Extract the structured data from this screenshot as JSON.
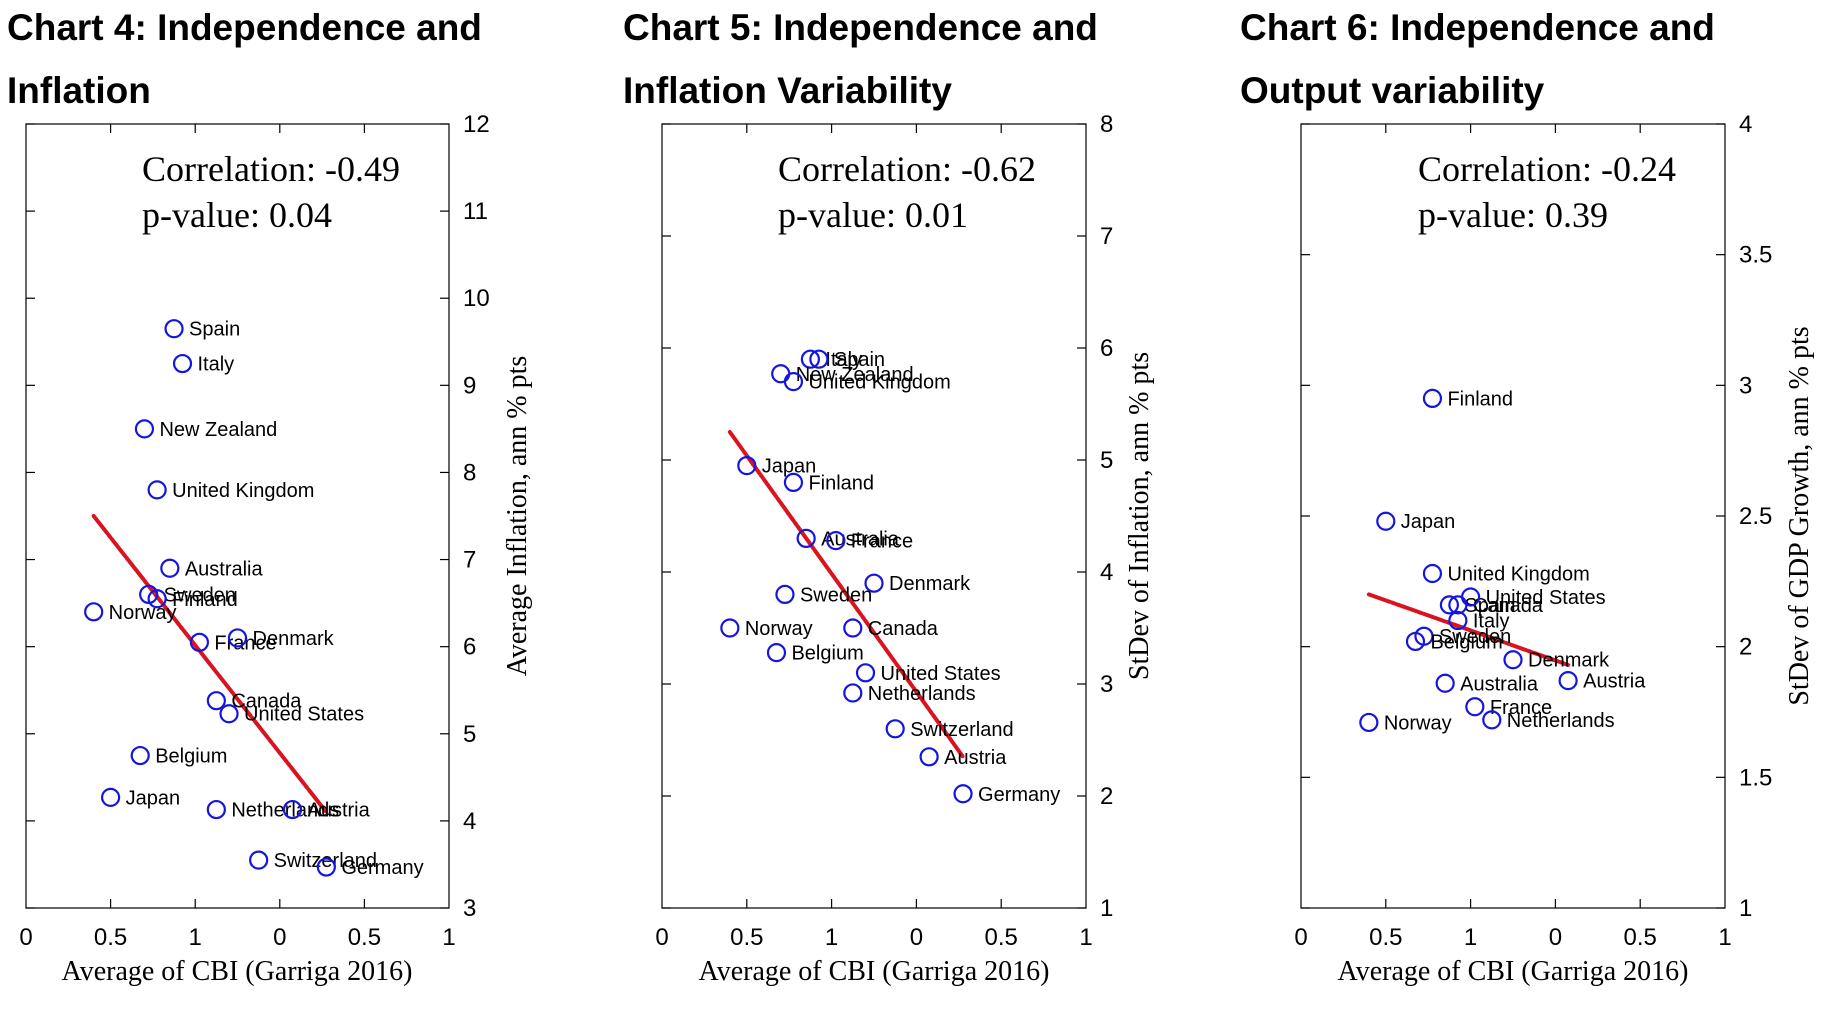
{
  "chart_data": [
    {
      "type": "scatter",
      "title_line1": "Chart 4:  Independence and",
      "title_line2": "Inflation",
      "xlabel": "Average of CBI (Garriga 2016)",
      "ylabel": "Average Inflation, ann % pts",
      "xlim": [
        0,
        1
      ],
      "ylim": [
        3,
        12
      ],
      "x_tick_labels": [
        "0",
        "0.5",
        "1",
        "0",
        "0.5",
        "1"
      ],
      "y_ticks": [
        3,
        4,
        5,
        6,
        7,
        8,
        9,
        10,
        11,
        12
      ],
      "annotation_line1": "Correlation:  -0.49",
      "annotation_line2": "p-value:  0.04",
      "fit_line": [
        [
          0.16,
          7.5
        ],
        [
          0.71,
          4.1
        ]
      ],
      "points": [
        {
          "label": "Spain",
          "x": 0.35,
          "y": 9.65
        },
        {
          "label": "Italy",
          "x": 0.37,
          "y": 9.25
        },
        {
          "label": "New Zealand",
          "x": 0.28,
          "y": 8.5
        },
        {
          "label": "United Kingdom",
          "x": 0.31,
          "y": 7.8
        },
        {
          "label": "Australia",
          "x": 0.34,
          "y": 6.9
        },
        {
          "label": "Sweden",
          "x": 0.29,
          "y": 6.6
        },
        {
          "label": "Finland",
          "x": 0.31,
          "y": 6.55
        },
        {
          "label": "Norway",
          "x": 0.16,
          "y": 6.4
        },
        {
          "label": "France",
          "x": 0.41,
          "y": 6.05
        },
        {
          "label": "Denmark",
          "x": 0.5,
          "y": 6.1
        },
        {
          "label": "Canada",
          "x": 0.45,
          "y": 5.38
        },
        {
          "label": "United States",
          "x": 0.48,
          "y": 5.23
        },
        {
          "label": "Belgium",
          "x": 0.27,
          "y": 4.75
        },
        {
          "label": "Japan",
          "x": 0.2,
          "y": 4.27
        },
        {
          "label": "Netherlands",
          "x": 0.45,
          "y": 4.13
        },
        {
          "label": "Austria",
          "x": 0.63,
          "y": 4.13
        },
        {
          "label": "Switzerland",
          "x": 0.55,
          "y": 3.55
        },
        {
          "label": "Germany",
          "x": 0.71,
          "y": 3.47
        }
      ]
    },
    {
      "type": "scatter",
      "title_line1": "Chart 5:  Independence and",
      "title_line2": "Inflation Variability",
      "xlabel": "Average of CBI (Garriga 2016)",
      "ylabel": "StDev of Inflation, ann % pts",
      "xlim": [
        0,
        1
      ],
      "ylim": [
        1,
        8
      ],
      "x_tick_labels": [
        "0",
        "0.5",
        "1",
        "0",
        "0.5",
        "1"
      ],
      "y_ticks": [
        1,
        2,
        3,
        4,
        5,
        6,
        7,
        8
      ],
      "annotation_line1": "Correlation:  -0.62",
      "annotation_line2": "p-value:  0.01",
      "fit_line": [
        [
          0.16,
          5.25
        ],
        [
          0.71,
          2.35
        ]
      ],
      "points": [
        {
          "label": "Italy",
          "x": 0.35,
          "y": 5.9
        },
        {
          "label": "Spain",
          "x": 0.37,
          "y": 5.9
        },
        {
          "label": "New Zealand",
          "x": 0.28,
          "y": 5.77
        },
        {
          "label": "United Kingdom",
          "x": 0.31,
          "y": 5.7
        },
        {
          "label": "Japan",
          "x": 0.2,
          "y": 4.95
        },
        {
          "label": "Finland",
          "x": 0.31,
          "y": 4.8
        },
        {
          "label": "Australia",
          "x": 0.34,
          "y": 4.3
        },
        {
          "label": "France",
          "x": 0.41,
          "y": 4.28
        },
        {
          "label": "Denmark",
          "x": 0.5,
          "y": 3.9
        },
        {
          "label": "Sweden",
          "x": 0.29,
          "y": 3.8
        },
        {
          "label": "Norway",
          "x": 0.16,
          "y": 3.5
        },
        {
          "label": "Canada",
          "x": 0.45,
          "y": 3.5
        },
        {
          "label": "Belgium",
          "x": 0.27,
          "y": 3.28
        },
        {
          "label": "United States",
          "x": 0.48,
          "y": 3.1
        },
        {
          "label": "Netherlands",
          "x": 0.45,
          "y": 2.92
        },
        {
          "label": "Switzerland",
          "x": 0.55,
          "y": 2.6
        },
        {
          "label": "Austria",
          "x": 0.63,
          "y": 2.35
        },
        {
          "label": "Germany",
          "x": 0.71,
          "y": 2.02
        }
      ]
    },
    {
      "type": "scatter",
      "title_line1": "Chart 6: Independence and",
      "title_line2": "Output variability",
      "xlabel": "Average of CBI (Garriga 2016)",
      "ylabel": "StDev of GDP Growth, ann % pts",
      "xlim": [
        0,
        1
      ],
      "ylim": [
        1,
        4
      ],
      "x_tick_labels": [
        "0",
        "0.5",
        "1",
        "0",
        "0.5",
        "1"
      ],
      "y_ticks": [
        1,
        1.5,
        2,
        2.5,
        3,
        3.5,
        4
      ],
      "annotation_line1": "Correlation:  -0.24",
      "annotation_line2": "p-value:  0.39",
      "fit_line": [
        [
          0.16,
          2.2
        ],
        [
          0.63,
          1.93
        ]
      ],
      "points": [
        {
          "label": "Finland",
          "x": 0.31,
          "y": 2.95
        },
        {
          "label": "Japan",
          "x": 0.2,
          "y": 2.48
        },
        {
          "label": "United Kingdom",
          "x": 0.31,
          "y": 2.28
        },
        {
          "label": "Spain",
          "x": 0.35,
          "y": 2.16
        },
        {
          "label": "Canada",
          "x": 0.37,
          "y": 2.16
        },
        {
          "label": "United States",
          "x": 0.4,
          "y": 2.19
        },
        {
          "label": "Italy",
          "x": 0.37,
          "y": 2.1
        },
        {
          "label": "Sweden",
          "x": 0.29,
          "y": 2.04
        },
        {
          "label": "Belgium",
          "x": 0.27,
          "y": 2.02
        },
        {
          "label": "Denmark",
          "x": 0.5,
          "y": 1.95
        },
        {
          "label": "Austria",
          "x": 0.63,
          "y": 1.87
        },
        {
          "label": "Australia",
          "x": 0.34,
          "y": 1.86
        },
        {
          "label": "France",
          "x": 0.41,
          "y": 1.77
        },
        {
          "label": "Netherlands",
          "x": 0.45,
          "y": 1.72
        },
        {
          "label": "Norway",
          "x": 0.16,
          "y": 1.71
        }
      ]
    }
  ]
}
